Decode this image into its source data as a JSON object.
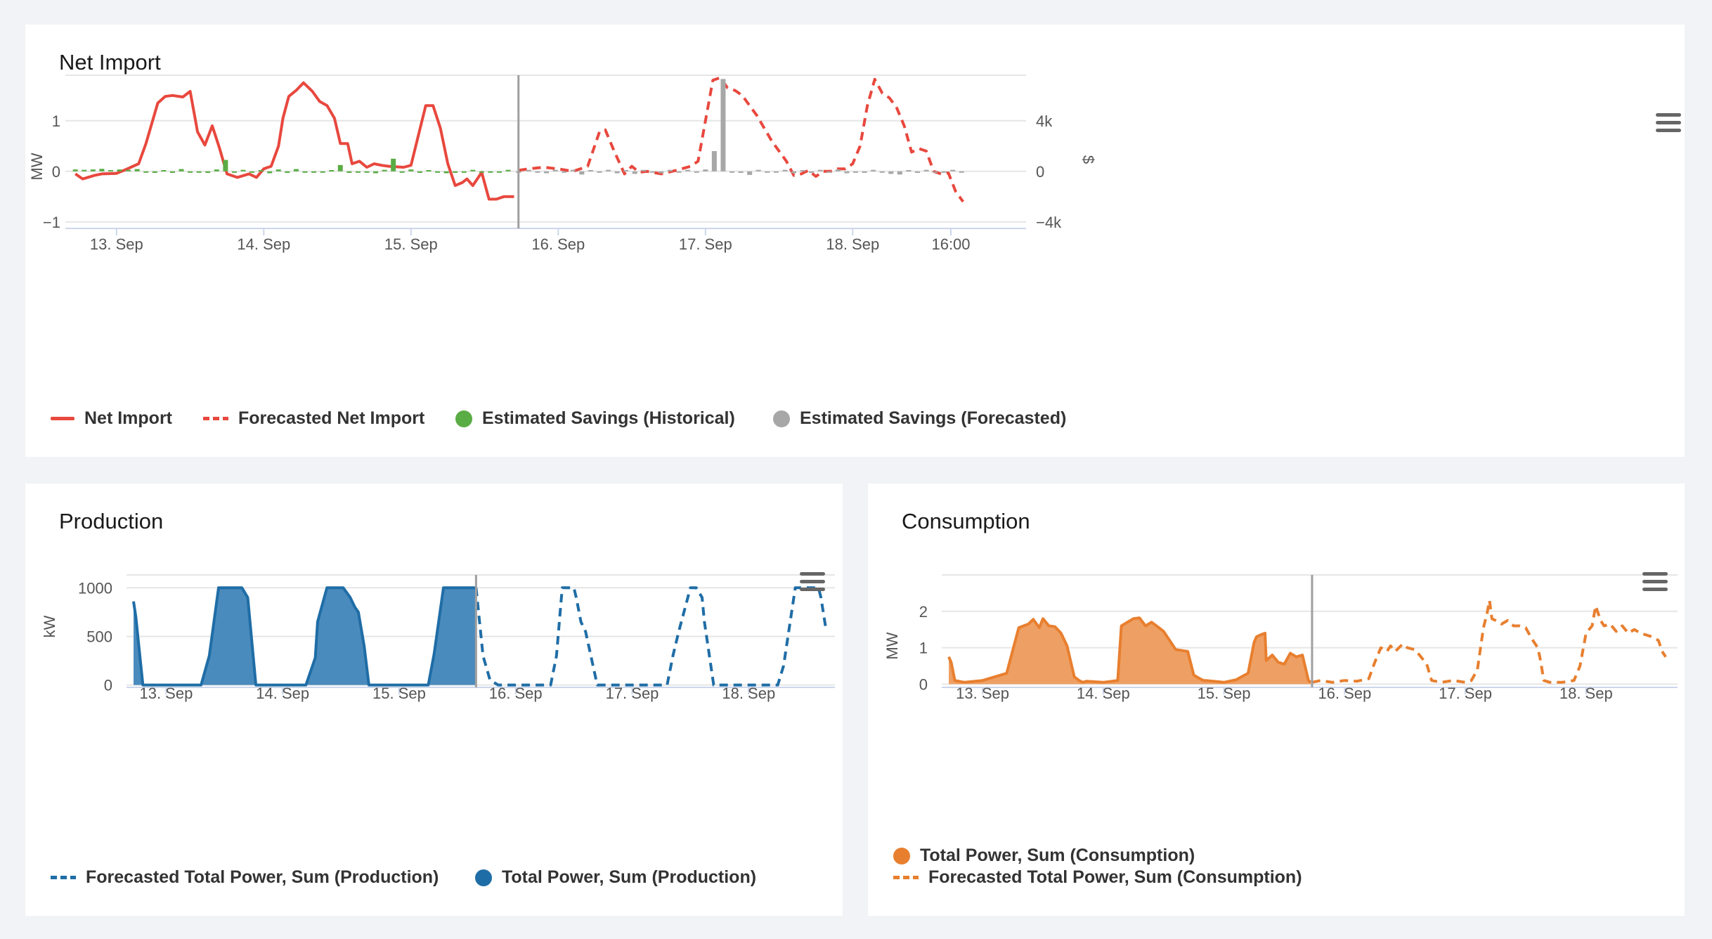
{
  "colors": {
    "net": "#e8483e",
    "savings_hist": "#5aac45",
    "savings_fore": "#a7a7a7",
    "production": "#1f6da6",
    "production_fill": "#4a8bbd",
    "consumption": "#e87f2f",
    "consumption_fill": "#eea064"
  },
  "cards": {
    "net": {
      "title": "Net Import",
      "menu_icon": "hamburger-menu-icon",
      "legend": [
        "Net Import",
        "Forecasted Net Import",
        "Estimated Savings (Historical)",
        "Estimated Savings (Forecasted)"
      ]
    },
    "production": {
      "title": "Production",
      "menu_icon": "hamburger-menu-icon",
      "legend": [
        "Forecasted Total Power, Sum (Production)",
        "Total Power, Sum (Production)"
      ]
    },
    "consumption": {
      "title": "Consumption",
      "menu_icon": "hamburger-menu-icon",
      "legend": [
        "Total Power, Sum (Consumption)",
        "Forecasted Total Power, Sum (Consumption)"
      ]
    }
  },
  "chart_data": [
    {
      "id": "net",
      "type": "line",
      "title": "Net Import",
      "xlim": [
        12.7,
        19.13
      ],
      "now": 15.73,
      "ylabel": "MW",
      "ylim": [
        -1.1,
        1.9
      ],
      "yticks": [
        -1,
        0,
        1
      ],
      "ytick_labels": [
        "−1",
        "0",
        "1"
      ],
      "y2label": "$",
      "y2lim": [
        -4400,
        7600
      ],
      "y2ticks": [
        -4000,
        0,
        4000
      ],
      "y2tick_labels": [
        "−4k",
        "0",
        "4k"
      ],
      "xticks": [
        {
          "x": 13,
          "label": "13. Sep"
        },
        {
          "x": 14,
          "label": "14. Sep"
        },
        {
          "x": 15,
          "label": "15. Sep"
        },
        {
          "x": 16,
          "label": "16. Sep"
        },
        {
          "x": 17,
          "label": "17. Sep"
        },
        {
          "x": 18,
          "label": "18. Sep"
        },
        {
          "x": 18.667,
          "label": "16:00"
        }
      ],
      "grid": true,
      "legend_position": "bottom-left",
      "series": [
        {
          "name": "Net Import",
          "style": "solid",
          "color": "#e8483e",
          "x": [
            12.72,
            12.77,
            12.85,
            12.9,
            13.0,
            13.05,
            13.15,
            13.2,
            13.28,
            13.33,
            13.38,
            13.45,
            13.5,
            13.55,
            13.6,
            13.65,
            13.7,
            13.75,
            13.82,
            13.9,
            13.95,
            14.0,
            14.05,
            14.1,
            14.13,
            14.17,
            14.22,
            14.27,
            14.33,
            14.38,
            14.43,
            14.48,
            14.52,
            14.57,
            14.6,
            14.65,
            14.7,
            14.75,
            14.8,
            14.85,
            14.95,
            15.0,
            15.1,
            15.15,
            15.2,
            15.25,
            15.3,
            15.35,
            15.38,
            15.42,
            15.48,
            15.53,
            15.58,
            15.63,
            15.7
          ],
          "y": [
            -0.05,
            -0.15,
            -0.08,
            -0.05,
            -0.04,
            0.02,
            0.15,
            0.55,
            1.35,
            1.48,
            1.5,
            1.47,
            1.58,
            0.78,
            0.52,
            0.9,
            0.45,
            -0.05,
            -0.12,
            -0.05,
            -0.12,
            0.05,
            0.1,
            0.5,
            1.05,
            1.48,
            1.6,
            1.75,
            1.58,
            1.38,
            1.3,
            1.05,
            0.55,
            0.55,
            0.15,
            0.2,
            0.08,
            0.15,
            0.12,
            0.1,
            0.08,
            0.12,
            1.3,
            1.3,
            0.85,
            0.15,
            -0.28,
            -0.22,
            -0.15,
            -0.28,
            -0.02,
            -0.55,
            -0.55,
            -0.5,
            -0.5
          ]
        },
        {
          "name": "Forecasted Net Import",
          "style": "dashed",
          "color": "#e8483e",
          "x": [
            15.73,
            15.8,
            15.9,
            16.0,
            16.1,
            16.2,
            16.28,
            16.32,
            16.38,
            16.45,
            16.5,
            16.55,
            16.6,
            16.7,
            16.8,
            16.9,
            16.95,
            17.0,
            17.05,
            17.1,
            17.15,
            17.2,
            17.25,
            17.3,
            17.35,
            17.4,
            17.45,
            17.5,
            17.55,
            17.6,
            17.65,
            17.7,
            17.75,
            17.8,
            17.85,
            17.9,
            17.95,
            18.0,
            18.05,
            18.1,
            18.15,
            18.2,
            18.25,
            18.3,
            18.35,
            18.4,
            18.45,
            18.5,
            18.55,
            18.6,
            18.65,
            18.7,
            18.75
          ],
          "y": [
            0.02,
            0.05,
            0.08,
            0.05,
            0.0,
            0.1,
            0.78,
            0.82,
            0.4,
            -0.05,
            0.1,
            -0.02,
            0.0,
            -0.05,
            0.02,
            0.1,
            0.2,
            1.0,
            1.8,
            1.85,
            1.65,
            1.6,
            1.5,
            1.3,
            1.1,
            0.85,
            0.6,
            0.4,
            0.2,
            -0.08,
            -0.05,
            0.02,
            -0.1,
            0.0,
            0.0,
            0.05,
            0.05,
            0.15,
            0.5,
            1.3,
            1.82,
            1.55,
            1.45,
            1.25,
            0.9,
            0.38,
            0.45,
            0.4,
            0.0,
            -0.05,
            -0.03,
            -0.4,
            -0.6
          ]
        },
        {
          "name": "Estimated Savings (Historical)",
          "type": "column",
          "axis": "y2",
          "color": "#5aac45",
          "x": [
            12.72,
            12.78,
            12.84,
            12.9,
            12.96,
            13.02,
            13.08,
            13.14,
            13.2,
            13.26,
            13.32,
            13.38,
            13.44,
            13.5,
            13.56,
            13.62,
            13.68,
            13.74,
            13.8,
            13.86,
            13.92,
            13.98,
            14.04,
            14.1,
            14.16,
            14.22,
            14.28,
            14.34,
            14.4,
            14.46,
            14.52,
            14.58,
            14.64,
            14.7,
            14.76,
            14.82,
            14.88,
            14.94,
            15.0,
            15.06,
            15.12,
            15.18,
            15.24,
            15.3,
            15.36,
            15.42,
            15.48,
            15.54,
            15.6,
            15.66
          ],
          "y": [
            150,
            120,
            150,
            200,
            100,
            150,
            120,
            180,
            -100,
            -120,
            100,
            -120,
            180,
            -100,
            -80,
            -120,
            150,
            900,
            -100,
            120,
            -80,
            100,
            -150,
            150,
            -120,
            180,
            -80,
            -100,
            -100,
            100,
            500,
            -120,
            -100,
            -80,
            -150,
            120,
            1000,
            -100,
            150,
            -120,
            100,
            -80,
            -150,
            -120,
            -100,
            120,
            -80,
            -100,
            -100,
            120
          ]
        },
        {
          "name": "Estimated Savings (Forecasted)",
          "type": "column",
          "axis": "y2",
          "color": "#a7a7a7",
          "x": [
            15.73,
            15.8,
            15.86,
            15.92,
            15.98,
            16.04,
            16.1,
            16.16,
            16.22,
            16.28,
            16.34,
            16.4,
            16.46,
            16.52,
            16.58,
            16.64,
            16.7,
            16.76,
            16.82,
            16.88,
            16.94,
            17.0,
            17.06,
            17.12,
            17.18,
            17.24,
            17.3,
            17.36,
            17.42,
            17.48,
            17.54,
            17.6,
            17.66,
            17.72,
            17.78,
            17.84,
            17.9,
            17.96,
            18.02,
            18.08,
            18.14,
            18.2,
            18.26,
            18.32,
            18.38,
            18.44,
            18.5,
            18.56,
            18.62,
            18.68,
            18.74
          ],
          "y": [
            -100,
            120,
            -80,
            -150,
            120,
            -100,
            120,
            -250,
            100,
            -80,
            120,
            -150,
            100,
            -200,
            120,
            -100,
            -150,
            120,
            -80,
            120,
            -100,
            150,
            1600,
            7300,
            -100,
            -120,
            -280,
            120,
            -80,
            -100,
            120,
            -150,
            100,
            -120,
            120,
            -100,
            150,
            -150,
            -80,
            -120,
            120,
            -80,
            -200,
            -250,
            100,
            -120,
            120,
            -100,
            -80,
            120,
            -100
          ]
        }
      ]
    },
    {
      "id": "production",
      "type": "area",
      "title": "Production",
      "xlim": [
        12.72,
        18.68
      ],
      "now": 15.66,
      "ylabel": "kW",
      "ylim": [
        -10,
        1530
      ],
      "yticks": [
        0,
        500,
        1000
      ],
      "ytick_labels": [
        "0",
        "500",
        "1000"
      ],
      "xticks": [
        {
          "x": 13,
          "label": "13. Sep"
        },
        {
          "x": 14,
          "label": "14. Sep"
        },
        {
          "x": 15,
          "label": "15. Sep"
        },
        {
          "x": 16,
          "label": "16. Sep"
        },
        {
          "x": 17,
          "label": "17. Sep"
        },
        {
          "x": 18,
          "label": "18. Sep"
        }
      ],
      "grid": true,
      "legend_position": "bottom-left",
      "series": [
        {
          "name": "Total Power, Sum (Production)",
          "style": "solid",
          "fill": true,
          "color": "#1f6da6",
          "x": [
            12.72,
            12.74,
            12.8,
            12.9,
            13.0,
            13.2,
            13.3,
            13.37,
            13.45,
            13.5,
            13.55,
            13.65,
            13.7,
            13.77,
            13.8,
            13.85,
            14.0,
            14.2,
            14.28,
            14.3,
            14.38,
            14.45,
            14.52,
            14.58,
            14.62,
            14.65,
            14.7,
            14.74,
            14.8,
            14.9,
            15.0,
            15.15,
            15.25,
            15.3,
            15.38,
            15.45,
            15.5,
            15.55,
            15.6,
            15.66
          ],
          "y": [
            860,
            700,
            0,
            0,
            0,
            0,
            0,
            300,
            1000,
            1000,
            1000,
            1000,
            900,
            0,
            0,
            0,
            0,
            0,
            280,
            650,
            1000,
            1000,
            1000,
            900,
            800,
            750,
            400,
            0,
            0,
            0,
            0,
            0,
            0,
            320,
            1000,
            1000,
            1000,
            1000,
            1000,
            1000
          ]
        },
        {
          "name": "Forecasted Total Power, Sum (Production)",
          "style": "dashed",
          "color": "#1f6da6",
          "x": [
            15.66,
            15.72,
            15.78,
            15.85,
            16.0,
            16.2,
            16.3,
            16.35,
            16.4,
            16.5,
            16.52,
            16.56,
            16.6,
            16.7,
            16.8,
            17.0,
            17.2,
            17.3,
            17.35,
            17.4,
            17.5,
            17.55,
            17.6,
            17.62,
            17.7,
            17.9,
            18.0,
            18.2,
            18.25,
            18.3,
            18.35,
            18.4,
            18.5,
            18.55,
            18.6,
            18.62,
            18.66
          ],
          "y": [
            1000,
            300,
            50,
            0,
            0,
            0,
            0,
            300,
            1000,
            1000,
            900,
            650,
            550,
            0,
            0,
            0,
            0,
            0,
            300,
            550,
            1000,
            1000,
            900,
            650,
            0,
            0,
            0,
            0,
            0,
            200,
            600,
            1000,
            1000,
            1000,
            1000,
            900,
            600
          ]
        }
      ]
    },
    {
      "id": "consumption",
      "type": "area",
      "title": "Consumption",
      "ylabel": "MW",
      "xlim": [
        12.72,
        18.7
      ],
      "now": 15.73,
      "ylim": [
        -0.05,
        3
      ],
      "yticks": [
        0,
        1,
        2
      ],
      "ytick_labels": [
        "0",
        "1",
        "2"
      ],
      "xticks": [
        {
          "x": 13,
          "label": "13. Sep"
        },
        {
          "x": 14,
          "label": "14. Sep"
        },
        {
          "x": 15,
          "label": "15. Sep"
        },
        {
          "x": 16,
          "label": "16. Sep"
        },
        {
          "x": 17,
          "label": "17. Sep"
        },
        {
          "x": 18,
          "label": "18. Sep"
        }
      ],
      "grid": true,
      "legend_position": "bottom-left",
      "series": [
        {
          "name": "Total Power, Sum (Consumption)",
          "style": "solid",
          "fill": true,
          "color": "#e87f2f",
          "x": [
            12.72,
            12.74,
            12.77,
            12.85,
            13.0,
            13.2,
            13.3,
            13.38,
            13.42,
            13.47,
            13.5,
            13.55,
            13.6,
            13.65,
            13.7,
            13.76,
            13.8,
            13.83,
            13.86,
            14.0,
            14.12,
            14.15,
            14.25,
            14.3,
            14.35,
            14.4,
            14.45,
            14.5,
            14.55,
            14.6,
            14.7,
            14.75,
            14.8,
            14.83,
            14.85,
            15.0,
            15.1,
            15.2,
            15.25,
            15.27,
            15.3,
            15.34,
            15.35,
            15.4,
            15.45,
            15.5,
            15.55,
            15.6,
            15.65,
            15.7,
            15.72
          ],
          "y": [
            0.75,
            0.6,
            0.1,
            0.05,
            0.1,
            0.3,
            1.55,
            1.65,
            1.78,
            1.55,
            1.8,
            1.6,
            1.58,
            1.4,
            1.05,
            0.2,
            0.1,
            0.05,
            0.08,
            0.05,
            0.1,
            1.6,
            1.8,
            1.82,
            1.6,
            1.7,
            1.58,
            1.45,
            1.2,
            0.95,
            0.9,
            0.25,
            0.15,
            0.1,
            0.1,
            0.05,
            0.12,
            0.3,
            1.15,
            1.3,
            1.35,
            1.4,
            0.65,
            0.8,
            0.6,
            0.55,
            0.85,
            0.75,
            0.8,
            0.1,
            0.05
          ]
        },
        {
          "name": "Forecasted Total Power, Sum (Consumption)",
          "style": "dashed",
          "color": "#e87f2f",
          "x": [
            15.73,
            15.8,
            15.9,
            16.0,
            16.1,
            16.2,
            16.25,
            16.3,
            16.35,
            16.38,
            16.42,
            16.48,
            16.52,
            16.58,
            16.62,
            16.68,
            16.72,
            16.8,
            16.9,
            17.0,
            17.05,
            17.1,
            17.15,
            17.18,
            17.2,
            17.22,
            17.25,
            17.3,
            17.35,
            17.4,
            17.45,
            17.5,
            17.55,
            17.6,
            17.62,
            17.65,
            17.7,
            17.8,
            17.9,
            17.95,
            18.0,
            18.05,
            18.08,
            18.12,
            18.15,
            18.2,
            18.25,
            18.3,
            18.35,
            18.4,
            18.45,
            18.5,
            18.55,
            18.6,
            18.63,
            18.66
          ],
          "y": [
            0.05,
            0.1,
            0.05,
            0.1,
            0.08,
            0.15,
            0.6,
            1.0,
            0.9,
            1.05,
            0.9,
            1.1,
            1.0,
            0.95,
            0.8,
            0.55,
            0.1,
            0.05,
            0.1,
            0.05,
            0.1,
            0.4,
            1.55,
            1.95,
            2.3,
            1.8,
            1.75,
            1.65,
            1.75,
            1.6,
            1.6,
            1.55,
            1.25,
            1.0,
            0.7,
            0.1,
            0.05,
            0.05,
            0.1,
            0.5,
            1.4,
            1.6,
            2.15,
            1.75,
            1.6,
            1.65,
            1.45,
            1.6,
            1.4,
            1.5,
            1.4,
            1.35,
            1.3,
            1.2,
            0.9,
            0.75
          ]
        }
      ]
    }
  ]
}
